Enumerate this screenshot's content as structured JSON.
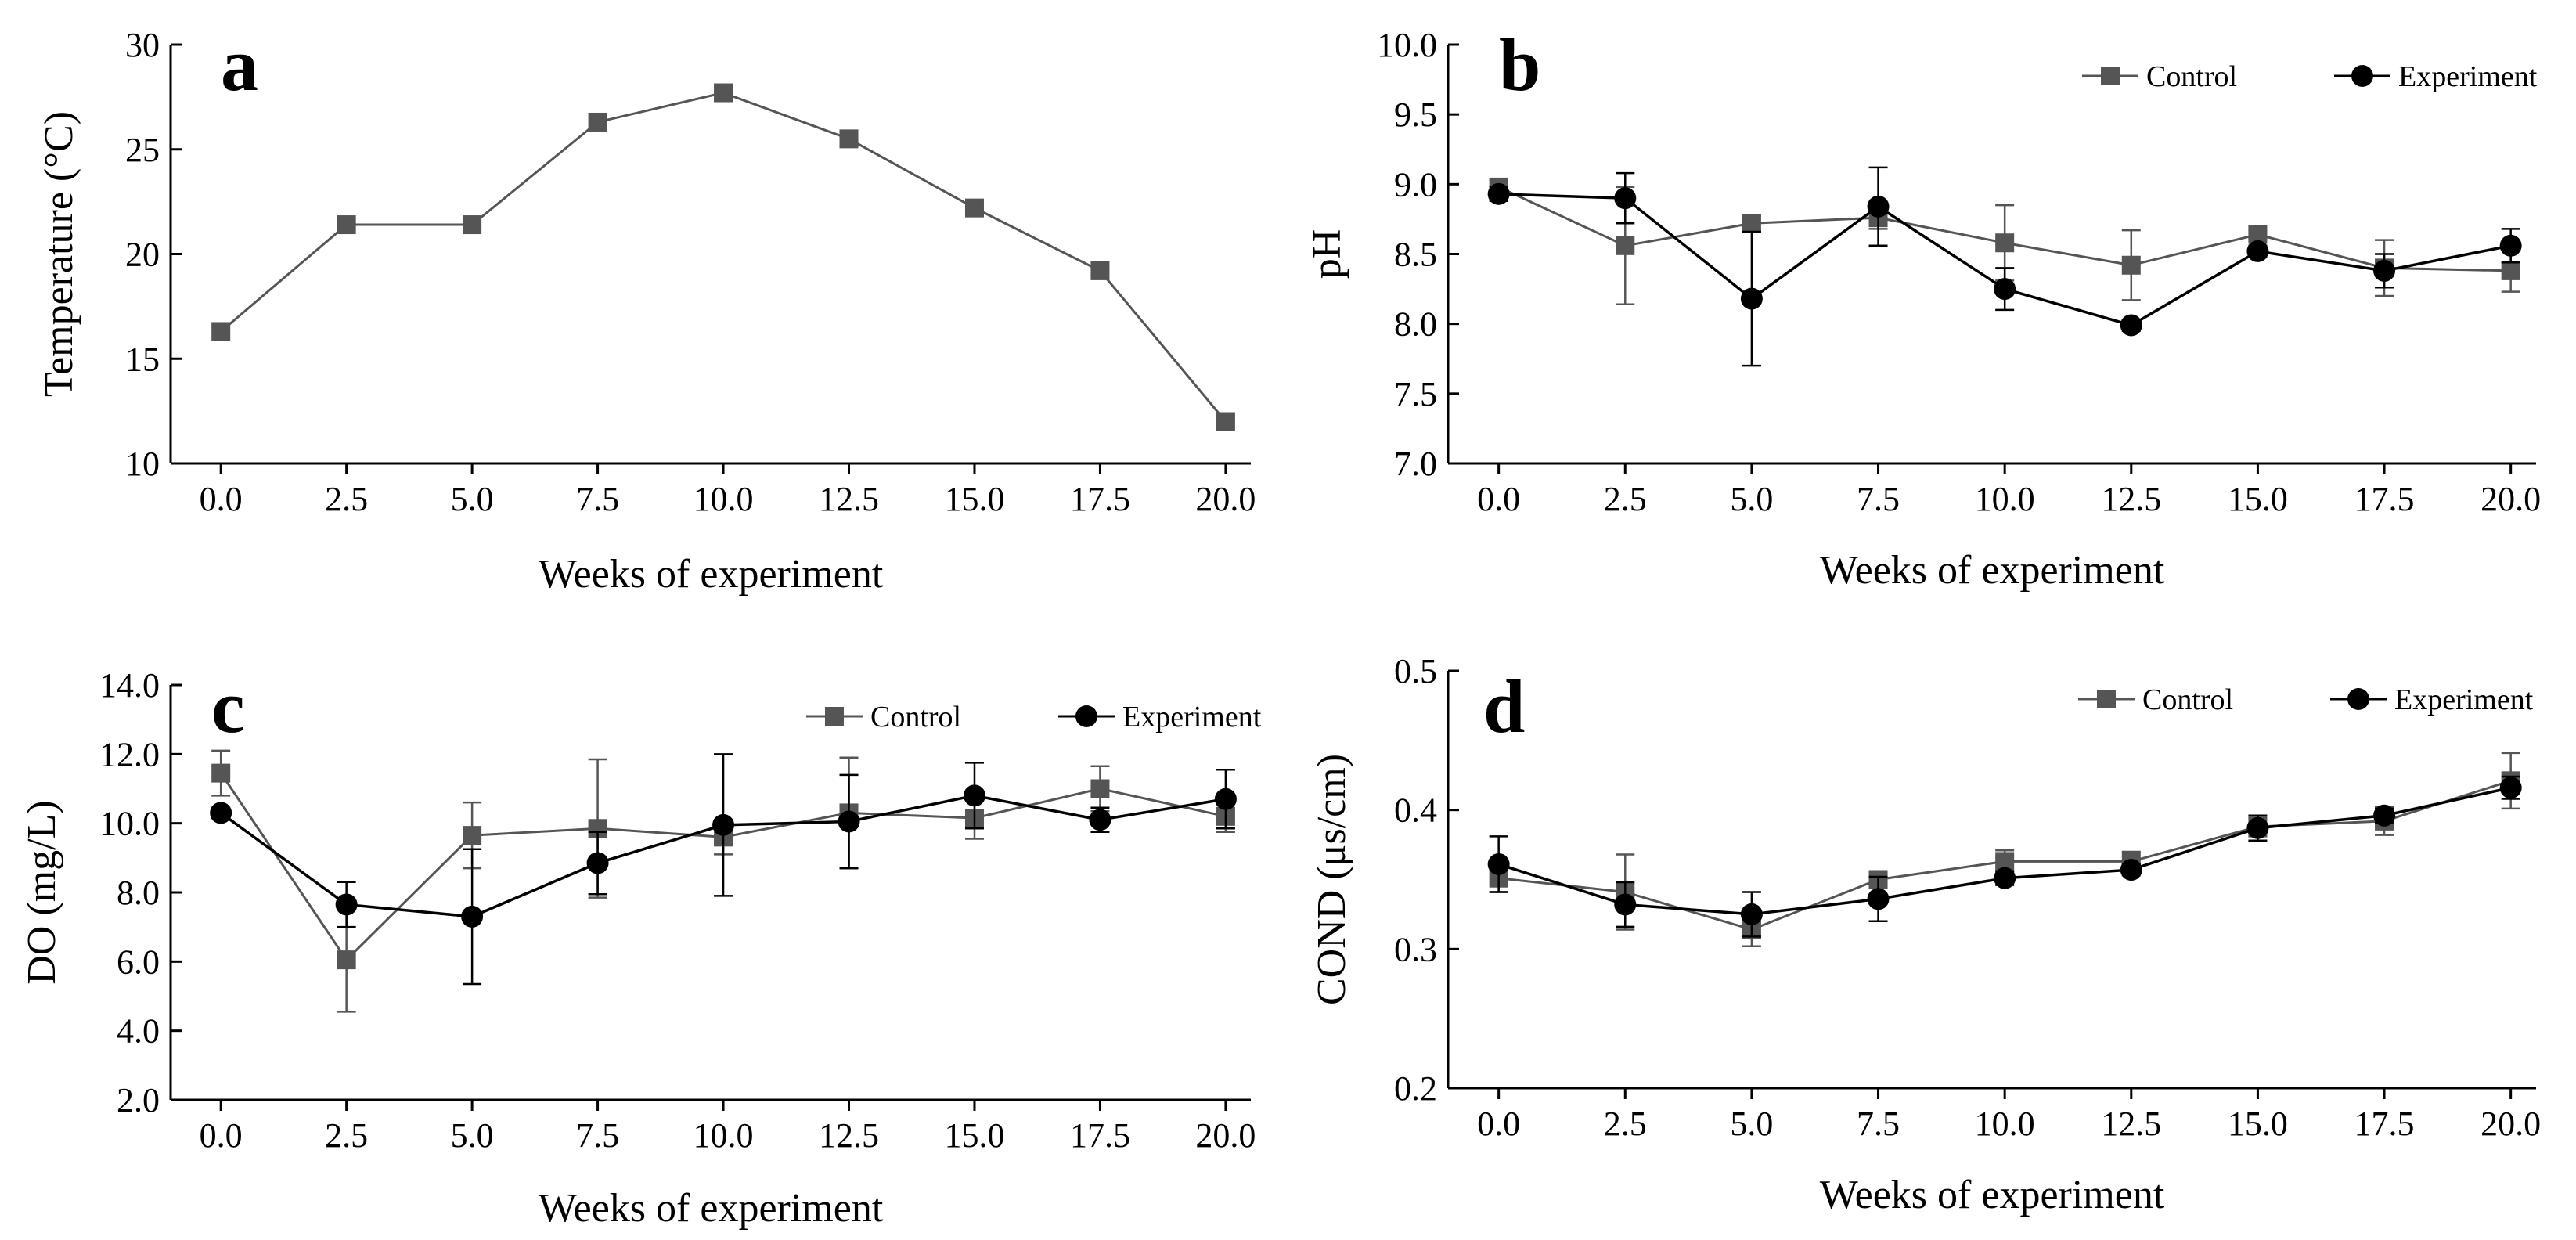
{
  "colors": {
    "control": "#555555",
    "experiment": "#000000",
    "axis": "#000000"
  },
  "chart_data": [
    {
      "id": "a",
      "type": "line",
      "panel_label": "a",
      "title": "",
      "xlabel": "Weeks of experiment",
      "ylabel": "Temperature (°C)",
      "xlim": [
        -1,
        20.5
      ],
      "ylim": [
        10,
        30
      ],
      "xticks": [
        0,
        2.5,
        5,
        7.5,
        10,
        12.5,
        15,
        17.5,
        20
      ],
      "xtick_labels": [
        "0.0",
        "2.5",
        "5.0",
        "7.5",
        "10.0",
        "12.5",
        "15.0",
        "17.5",
        "20.0"
      ],
      "yticks": [
        10,
        15,
        20,
        25,
        30
      ],
      "ytick_labels": [
        "10",
        "15",
        "20",
        "25",
        "30"
      ],
      "x": [
        0,
        2.5,
        5,
        7.5,
        10,
        12.5,
        15,
        17.5,
        20
      ],
      "series": [
        {
          "name": "Temperature",
          "key": "control",
          "marker": "square",
          "values": [
            16.3,
            21.4,
            21.4,
            26.3,
            27.7,
            25.5,
            22.2,
            19.2,
            12.0
          ],
          "errors": [
            0,
            0,
            0,
            0,
            0,
            0,
            0,
            0,
            0
          ]
        }
      ],
      "legend": null
    },
    {
      "id": "b",
      "type": "line",
      "panel_label": "b",
      "title": "",
      "xlabel": "Weeks of experiment",
      "ylabel": "pH",
      "xlim": [
        -1,
        20.5
      ],
      "ylim": [
        7.0,
        10.0
      ],
      "xticks": [
        0,
        2.5,
        5,
        7.5,
        10,
        12.5,
        15,
        17.5,
        20
      ],
      "xtick_labels": [
        "0.0",
        "2.5",
        "5.0",
        "7.5",
        "10.0",
        "12.5",
        "15.0",
        "17.5",
        "20.0"
      ],
      "yticks": [
        7.0,
        7.5,
        8.0,
        8.5,
        9.0,
        9.5,
        10.0
      ],
      "ytick_labels": [
        "7.0",
        "7.5",
        "8.0",
        "8.5",
        "9.0",
        "9.5",
        "10.0"
      ],
      "x": [
        0,
        2.5,
        5,
        7.5,
        10,
        12.5,
        15,
        17.5,
        20
      ],
      "series": [
        {
          "name": "Control",
          "key": "control",
          "marker": "square",
          "values": [
            8.98,
            8.56,
            8.72,
            8.76,
            8.58,
            8.42,
            8.64,
            8.4,
            8.38
          ],
          "errors": [
            0.05,
            0.42,
            0.05,
            0.08,
            0.27,
            0.25,
            0.03,
            0.2,
            0.15
          ]
        },
        {
          "name": "Experiment",
          "key": "experiment",
          "marker": "circle",
          "values": [
            8.93,
            8.9,
            8.18,
            8.84,
            8.25,
            7.99,
            8.52,
            8.38,
            8.56
          ],
          "errors": [
            0.05,
            0.18,
            0.48,
            0.28,
            0.15,
            0.04,
            0.04,
            0.12,
            0.12
          ]
        }
      ],
      "legend": {
        "entries": [
          "Control",
          "Experiment"
        ],
        "position": "top-right"
      }
    },
    {
      "id": "c",
      "type": "line",
      "panel_label": "c",
      "title": "",
      "xlabel": "Weeks of experiment",
      "ylabel": "DO (mg/L)",
      "xlim": [
        -1,
        20.5
      ],
      "ylim": [
        2.0,
        14.0
      ],
      "xticks": [
        0,
        2.5,
        5,
        7.5,
        10,
        12.5,
        15,
        17.5,
        20
      ],
      "xtick_labels": [
        "0.0",
        "2.5",
        "5.0",
        "7.5",
        "10.0",
        "12.5",
        "15.0",
        "17.5",
        "20.0"
      ],
      "yticks": [
        2.0,
        4.0,
        6.0,
        8.0,
        10.0,
        12.0,
        14.0
      ],
      "ytick_labels": [
        "2.0",
        "4.0",
        "6.0",
        "8.0",
        "10.0",
        "12.0",
        "14.0"
      ],
      "x": [
        0,
        2.5,
        5,
        7.5,
        10,
        12.5,
        15,
        17.5,
        20
      ],
      "series": [
        {
          "name": "Control",
          "key": "control",
          "marker": "square",
          "values": [
            11.45,
            6.05,
            9.65,
            9.85,
            9.6,
            10.3,
            10.15,
            11.0,
            10.2
          ],
          "errors": [
            0.65,
            1.5,
            0.95,
            2.0,
            0.5,
            1.6,
            0.6,
            0.65,
            0.45
          ]
        },
        {
          "name": "Experiment",
          "key": "experiment",
          "marker": "circle",
          "values": [
            10.3,
            7.65,
            7.3,
            8.85,
            9.95,
            10.05,
            10.8,
            10.1,
            10.7
          ],
          "errors": [
            0.15,
            0.65,
            1.95,
            0.9,
            2.05,
            1.35,
            0.95,
            0.35,
            0.85
          ]
        }
      ],
      "legend": {
        "entries": [
          "Control",
          "Experiment"
        ],
        "position": "top-right"
      }
    },
    {
      "id": "d",
      "type": "line",
      "panel_label": "d",
      "title": "",
      "xlabel": "Weeks of experiment",
      "ylabel": "COND (μs/cm)",
      "xlim": [
        -1,
        20.5
      ],
      "ylim": [
        0.2,
        0.5
      ],
      "xticks": [
        0,
        2.5,
        5,
        7.5,
        10,
        12.5,
        15,
        17.5,
        20
      ],
      "xtick_labels": [
        "0.0",
        "2.5",
        "5.0",
        "7.5",
        "10.0",
        "12.5",
        "15.0",
        "17.5",
        "20.0"
      ],
      "yticks": [
        0.2,
        0.3,
        0.4,
        0.5
      ],
      "ytick_labels": [
        "0.2",
        "0.3",
        "0.4",
        "0.5"
      ],
      "x": [
        0,
        2.5,
        5,
        7.5,
        10,
        12.5,
        15,
        17.5,
        20
      ],
      "series": [
        {
          "name": "Control",
          "key": "control",
          "marker": "square",
          "values": [
            0.351,
            0.341,
            0.314,
            0.35,
            0.363,
            0.363,
            0.388,
            0.392,
            0.421
          ],
          "errors": [
            0.01,
            0.027,
            0.012,
            0.004,
            0.008,
            0.007,
            0.007,
            0.01,
            0.02
          ]
        },
        {
          "name": "Experiment",
          "key": "experiment",
          "marker": "circle",
          "values": [
            0.361,
            0.332,
            0.325,
            0.336,
            0.351,
            0.357,
            0.387,
            0.396,
            0.416
          ],
          "errors": [
            0.02,
            0.016,
            0.016,
            0.016,
            0.005,
            0.004,
            0.009,
            0.005,
            0.008
          ]
        }
      ],
      "legend": {
        "entries": [
          "Control",
          "Experiment"
        ],
        "position": "top-right"
      }
    }
  ]
}
